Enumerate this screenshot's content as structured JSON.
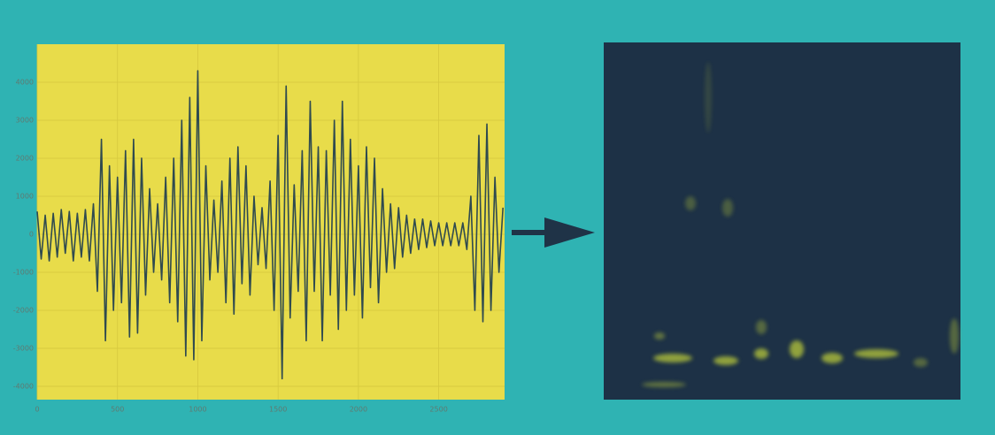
{
  "chart_data": {
    "type": "line",
    "x": [
      0,
      25,
      50,
      75,
      100,
      125,
      150,
      175,
      200,
      225,
      250,
      275,
      300,
      325,
      350,
      375,
      400,
      425,
      450,
      475,
      500,
      525,
      550,
      575,
      600,
      625,
      650,
      675,
      700,
      725,
      750,
      775,
      800,
      825,
      850,
      875,
      900,
      925,
      950,
      975,
      1000,
      1025,
      1050,
      1075,
      1100,
      1125,
      1150,
      1175,
      1200,
      1225,
      1250,
      1275,
      1300,
      1325,
      1350,
      1375,
      1400,
      1425,
      1450,
      1475,
      1500,
      1525,
      1550,
      1575,
      1600,
      1625,
      1650,
      1675,
      1700,
      1725,
      1750,
      1775,
      1800,
      1825,
      1850,
      1875,
      1900,
      1925,
      1950,
      1975,
      2000,
      2025,
      2050,
      2075,
      2100,
      2125,
      2150,
      2175,
      2200,
      2225,
      2250,
      2275,
      2300,
      2325,
      2350,
      2375,
      2400,
      2425,
      2450,
      2475,
      2500,
      2525,
      2550,
      2575,
      2600,
      2625,
      2650,
      2675,
      2700,
      2725,
      2750,
      2775,
      2800,
      2825,
      2850,
      2875,
      2900
    ],
    "series": [
      {
        "color": "#2f4a4f",
        "values": [
          600,
          -650,
          500,
          -700,
          550,
          -600,
          650,
          -500,
          600,
          -700,
          550,
          -600,
          650,
          -700,
          800,
          -1500,
          2500,
          -2800,
          1800,
          -2000,
          1500,
          -1800,
          2200,
          -2700,
          2500,
          -2600,
          2000,
          -1600,
          1200,
          -1000,
          800,
          -1200,
          1500,
          -1800,
          2000,
          -2300,
          3000,
          -3200,
          3600,
          -3300,
          4300,
          -2800,
          1800,
          -1200,
          900,
          -1000,
          1400,
          -1800,
          2000,
          -2100,
          2300,
          -1300,
          1800,
          -1600,
          1000,
          -800,
          700,
          -900,
          1400,
          -2000,
          2600,
          -3800,
          3900,
          -2200,
          1300,
          -1500,
          2200,
          -2800,
          3500,
          -1500,
          2300,
          -2800,
          2200,
          -1600,
          3000,
          -2500,
          3500,
          -2000,
          2500,
          -1600,
          1800,
          -2200,
          2300,
          -1400,
          2000,
          -1800,
          1200,
          -1000,
          800,
          -900,
          700,
          -600,
          500,
          -500,
          400,
          -400,
          400,
          -350,
          350,
          -300,
          300,
          -300,
          300,
          -300,
          300,
          -300,
          300,
          -400,
          1000,
          -2000,
          2600,
          -2300,
          2900,
          -2000,
          1500,
          -1000,
          700
        ]
      }
    ],
    "xlim": [
      0,
      2910
    ],
    "xticks": [
      0,
      500,
      1000,
      1500,
      2000,
      2500
    ],
    "ylim": [
      -4350,
      5000
    ],
    "yticks": [
      4000,
      3000,
      2000,
      1000,
      0,
      -1000,
      -2000,
      -3000,
      -4000
    ],
    "grid": true,
    "plot_color": "#e8dc4a"
  }
}
